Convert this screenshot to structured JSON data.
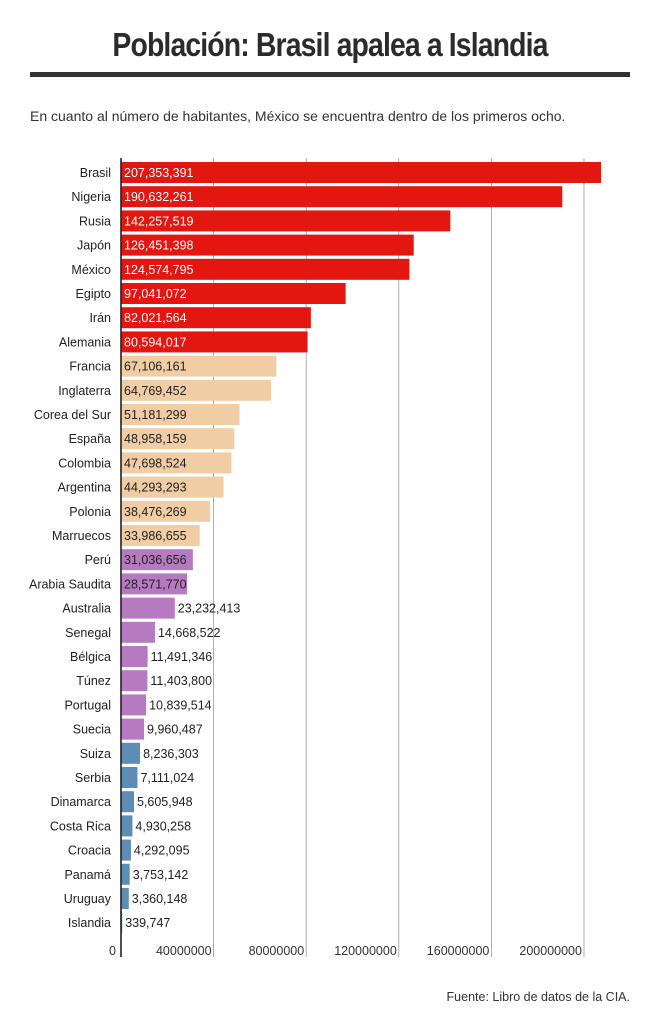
{
  "title": "Población: Brasil apalea a Islandia",
  "subtitle": "En cuanto al número de habitantes, México se encuentra dentro de los primeros ocho.",
  "source": "Fuente: Libro de datos de la CIA.",
  "colors": {
    "red": "#e3170f",
    "beige": "#f0cda5",
    "purple": "#b57abf",
    "blue": "#5d8cb5",
    "grid": "#9a9a9a",
    "axis": "#222222"
  },
  "chart_data": {
    "type": "bar",
    "orientation": "horizontal",
    "title": "Población: Brasil apalea a Islandia",
    "xlabel": "",
    "ylabel": "",
    "xlim": [
      0,
      207353391
    ],
    "x_ticks": [
      0,
      40000000,
      80000000,
      120000000,
      160000000,
      200000000
    ],
    "x_tick_labels": [
      "0",
      "40000000",
      "80000000",
      "120000000",
      "160000000",
      "200000000"
    ],
    "grid": true,
    "legend": "none",
    "categories": [
      "Brasil",
      "Nigeria",
      "Rusia",
      "Japón",
      "México",
      "Egipto",
      "Irán",
      "Alemania",
      "Francia",
      "Inglaterra",
      "Corea del Sur",
      "España",
      "Colombia",
      "Argentina",
      "Polonia",
      "Marruecos",
      "Perú",
      "Arabia Saudita",
      "Australia",
      "Senegal",
      "Bélgica",
      "Túnez",
      "Portugal",
      "Suecia",
      "Suiza",
      "Serbia",
      "Dinamarca",
      "Costa Rica",
      "Croacia",
      "Panamá",
      "Uruguay",
      "Islandia"
    ],
    "values": [
      207353391,
      190632261,
      142257519,
      126451398,
      124574795,
      97041072,
      82021564,
      80594017,
      67106161,
      64769452,
      51181299,
      48958159,
      47698524,
      44293293,
      38476269,
      33986655,
      31036656,
      28571770,
      23232413,
      14668522,
      11491346,
      11403800,
      10839514,
      9960487,
      8236303,
      7111024,
      5605948,
      4930258,
      4292095,
      3753142,
      3360148,
      339747
    ],
    "labels": [
      "207,353,391",
      "190,632,261",
      "142,257,519",
      "126,451,398",
      "124,574,795",
      "97,041,072",
      "82,021,564",
      "80,594,017",
      "67,106,161",
      "64,769,452",
      "51,181,299",
      "48,958,159",
      "47,698,524",
      "44,293,293",
      "38,476,269",
      "33,986,655",
      "31,036,656",
      "28,571,770",
      "23,232,413",
      "14,668,522",
      "11,491,346",
      "11,403,800",
      "10,839,514",
      "9,960,487",
      "8,236,303",
      "7,111,024",
      "5,605,948",
      "4,930,258",
      "4,292,095",
      "3,753,142",
      "3,360,148",
      "339,747"
    ],
    "bar_colors": [
      "red",
      "red",
      "red",
      "red",
      "red",
      "red",
      "red",
      "red",
      "beige",
      "beige",
      "beige",
      "beige",
      "beige",
      "beige",
      "beige",
      "beige",
      "purple",
      "purple",
      "purple",
      "purple",
      "purple",
      "purple",
      "purple",
      "purple",
      "blue",
      "blue",
      "blue",
      "blue",
      "blue",
      "blue",
      "blue",
      "blue"
    ]
  }
}
